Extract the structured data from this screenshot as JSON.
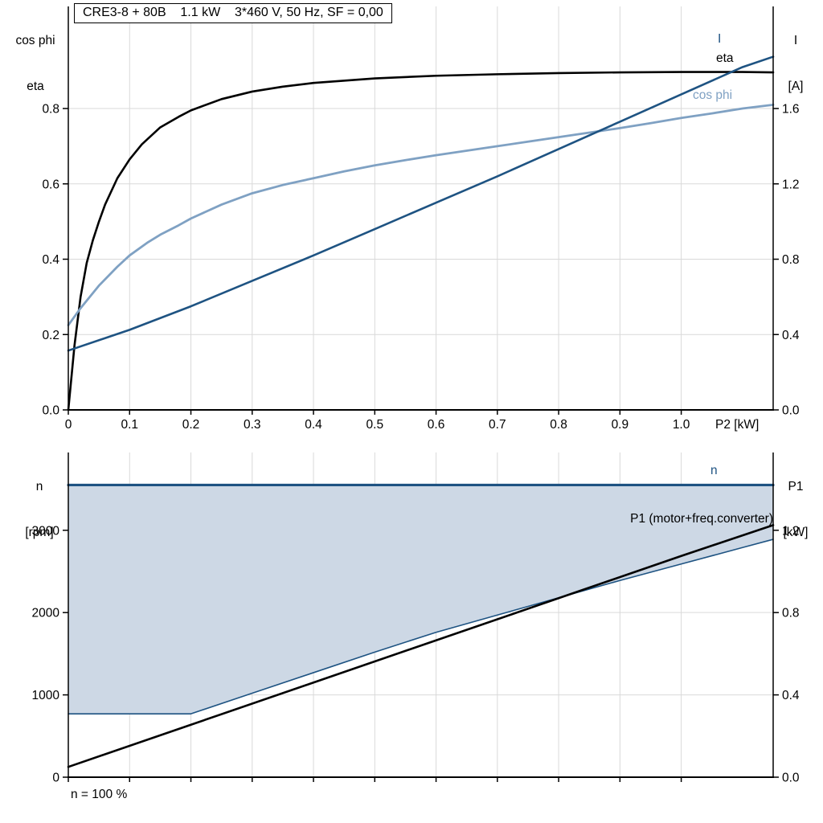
{
  "title_box": "CRE3-8 + 80B    1.1 kW    3*460 V, 50 Hz, SF = 0,00",
  "axis_corner_labels": {
    "top_left_line1": "cos phi",
    "top_left_line2": "eta",
    "top_right_line1": "I",
    "top_right_line2": "[A]",
    "bottom_left_line1": "n",
    "bottom_left_line2": "[rpm]",
    "bottom_right_line1": "P1",
    "bottom_right_line2": "[kW]"
  },
  "curve_labels": {
    "current": "I",
    "eta": "eta",
    "cos_phi": "cos phi",
    "speed": "n",
    "p1": "P1 (motor+freq.converter)"
  },
  "footnote": "n = 100 %",
  "colors": {
    "dark_blue": "#1e5382",
    "light_blue": "#7fa1c3",
    "fill_blue": "#cdd8e5",
    "black": "#000000",
    "grid": "#d9d9d9"
  },
  "chart_data": [
    {
      "id": "top",
      "type": "line",
      "title": "CRE3-8 + 80B 1.1 kW 3*460 V, 50 Hz, SF = 0,00",
      "x_axis": {
        "label": "P2 [kW]",
        "min": 0,
        "max": 1.15,
        "tick_values": [
          0,
          0.1,
          0.2,
          0.3,
          0.4,
          0.5,
          0.6,
          0.7,
          0.8,
          0.9,
          1.0
        ],
        "tick_labels": [
          "0",
          "0.1",
          "0.2",
          "0.3",
          "0.4",
          "0.5",
          "0.6",
          "0.7",
          "0.8",
          "0.9",
          "1.0"
        ]
      },
      "y_left": {
        "label": "cos phi, eta",
        "min": 0,
        "max": 1.071,
        "tick_values": [
          0,
          0.2,
          0.4,
          0.6,
          0.8
        ],
        "tick_labels": [
          "0.0",
          "0.2",
          "0.4",
          "0.6",
          "0.8"
        ]
      },
      "y_right": {
        "label": "I [A]",
        "min": 0,
        "max": 2.142,
        "tick_values": [
          0,
          0.4,
          0.8,
          1.2,
          1.6
        ],
        "tick_labels": [
          "0.0",
          "0.4",
          "0.8",
          "1.2",
          "1.6"
        ]
      },
      "series": [
        {
          "name": "eta",
          "key": "eta",
          "axis": "left",
          "color": "#000000",
          "width": 2.6,
          "x": [
            0,
            0.01,
            0.02,
            0.03,
            0.04,
            0.05,
            0.06,
            0.08,
            0.1,
            0.12,
            0.15,
            0.18,
            0.2,
            0.25,
            0.3,
            0.35,
            0.4,
            0.5,
            0.6,
            0.7,
            0.8,
            0.9,
            1.0,
            1.1,
            1.15
          ],
          "y": [
            0,
            0.17,
            0.3,
            0.39,
            0.45,
            0.5,
            0.545,
            0.615,
            0.665,
            0.705,
            0.75,
            0.778,
            0.795,
            0.825,
            0.845,
            0.858,
            0.868,
            0.88,
            0.887,
            0.891,
            0.894,
            0.896,
            0.897,
            0.897,
            0.896
          ]
        },
        {
          "name": "cos phi",
          "key": "cos-phi",
          "axis": "left",
          "color": "#7fa1c3",
          "width": 2.8,
          "x": [
            0,
            0.02,
            0.05,
            0.08,
            0.1,
            0.13,
            0.15,
            0.18,
            0.2,
            0.25,
            0.3,
            0.35,
            0.4,
            0.45,
            0.5,
            0.55,
            0.6,
            0.65,
            0.7,
            0.75,
            0.8,
            0.85,
            0.9,
            0.95,
            1.0,
            1.05,
            1.1,
            1.15
          ],
          "y": [
            0.225,
            0.27,
            0.33,
            0.38,
            0.41,
            0.445,
            0.465,
            0.49,
            0.508,
            0.545,
            0.575,
            0.597,
            0.615,
            0.633,
            0.649,
            0.663,
            0.676,
            0.688,
            0.7,
            0.712,
            0.724,
            0.736,
            0.748,
            0.761,
            0.775,
            0.787,
            0.8,
            0.81
          ]
        },
        {
          "name": "I",
          "key": "current",
          "axis": "right",
          "color": "#1e5382",
          "width": 2.6,
          "x": [
            0,
            0.1,
            0.2,
            0.3,
            0.4,
            0.5,
            0.6,
            0.7,
            0.8,
            0.9,
            1.0,
            1.1,
            1.15
          ],
          "y": [
            0.315,
            0.425,
            0.55,
            0.685,
            0.82,
            0.96,
            1.1,
            1.24,
            1.385,
            1.53,
            1.675,
            1.82,
            1.875
          ]
        }
      ]
    },
    {
      "id": "bottom",
      "type": "line",
      "x_axis": {
        "label": "",
        "min": 0,
        "max": 1.15,
        "tick_values": [
          0,
          0.1,
          0.2,
          0.3,
          0.4,
          0.5,
          0.6,
          0.7,
          0.8,
          0.9,
          1.0
        ],
        "tick_labels": []
      },
      "y_left": {
        "label": "n [rpm]",
        "min": 0,
        "max": 3945,
        "tick_values": [
          0,
          1000,
          2000,
          3000
        ],
        "tick_labels": [
          "0",
          "1000",
          "2000",
          "3000"
        ]
      },
      "y_right": {
        "label": "P1 [kW]",
        "min": 0,
        "max": 1.578,
        "tick_values": [
          0,
          0.4,
          0.8,
          1.2
        ],
        "tick_labels": [
          "0.0",
          "0.4",
          "0.8",
          "1.2"
        ]
      },
      "fill": {
        "lower": "n min",
        "upper": "n",
        "color": "#cdd8e5"
      },
      "series": [
        {
          "name": "n min",
          "key": "speed-min",
          "axis": "left",
          "color": "#1e5382",
          "width": 1.6,
          "x": [
            0,
            0.2,
            0.3,
            0.4,
            0.5,
            0.6,
            0.7,
            0.8,
            0.9,
            1.0,
            1.1,
            1.15
          ],
          "y": [
            770,
            770,
            1020,
            1270,
            1520,
            1760,
            1970,
            2180,
            2390,
            2590,
            2790,
            2890
          ]
        },
        {
          "name": "n",
          "key": "speed",
          "axis": "left",
          "color": "#1e5382",
          "width": 3.2,
          "x": [
            0,
            1.15
          ],
          "y": [
            3550,
            3550
          ]
        },
        {
          "name": "P1",
          "key": "p1",
          "axis": "right",
          "color": "#000000",
          "width": 2.6,
          "x": [
            0,
            0.2,
            0.4,
            0.6,
            0.8,
            1.0,
            1.15
          ],
          "y": [
            0.05,
            0.255,
            0.46,
            0.665,
            0.87,
            1.075,
            1.225
          ]
        }
      ]
    }
  ]
}
